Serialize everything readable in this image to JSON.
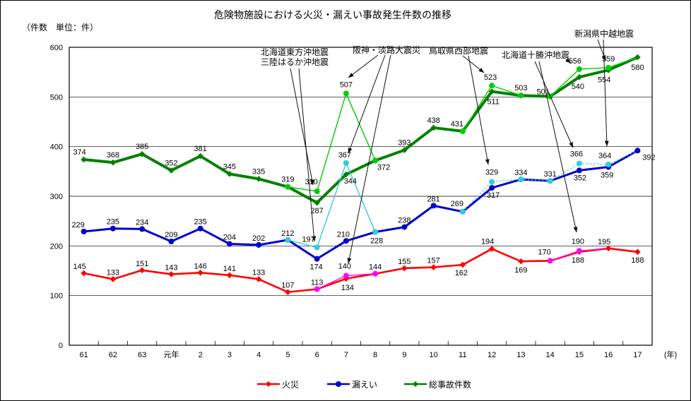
{
  "chart_data": {
    "type": "line",
    "title": "危険物施設における火災・漏えい事故発生件数の推移",
    "ylabel": "（件数　単位：件）",
    "xlabel": "(年)",
    "ylim": [
      0,
      600
    ],
    "yticks": [
      0,
      100,
      200,
      300,
      400,
      500,
      600
    ],
    "grid": true,
    "legend_position": "bottom",
    "categories": [
      "61",
      "62",
      "63",
      "元年",
      "2",
      "3",
      "4",
      "5",
      "6",
      "7",
      "8",
      "9",
      "10",
      "11",
      "12",
      "13",
      "14",
      "15",
      "16",
      "17"
    ],
    "series": [
      {
        "name": "火災",
        "color": "#ff0000",
        "marker": "diamond",
        "width": 2.6,
        "values": [
          145,
          133,
          151,
          143,
          146,
          141,
          133,
          107,
          113,
          134,
          144,
          155,
          157,
          162,
          194,
          169,
          170,
          188,
          195,
          188
        ]
      },
      {
        "name": "漏えい",
        "color": "#0000cc",
        "marker": "circle",
        "width": 3,
        "values": [
          229,
          235,
          234,
          209,
          235,
          204,
          202,
          212,
          174,
          210,
          228,
          238,
          281,
          269,
          317,
          334,
          331,
          352,
          359,
          392
        ]
      },
      {
        "name": "総事故件数",
        "color": "#008000",
        "marker": "diamond",
        "width": 4,
        "values": [
          374,
          368,
          385,
          352,
          381,
          345,
          335,
          319,
          287,
          344,
          372,
          393,
          438,
          431,
          511,
          503,
          501,
          540,
          554,
          580
        ]
      }
    ],
    "overlays": [
      {
        "id": "total-incl-earthquake",
        "color": "#00cc00",
        "segments": [
          {
            "x": [
              7,
              8,
              9,
              10
            ],
            "y": [
              319,
              310,
              507,
              372
            ]
          },
          {
            "x": [
              13,
              14,
              15
            ],
            "y": [
              431,
              523,
              503
            ]
          },
          {
            "x": [
              16,
              17,
              18,
              19
            ],
            "y": [
              501,
              556,
              559,
              580
            ],
            "open_end": true
          }
        ],
        "labeled_points": [
          [
            0,
            1
          ],
          [
            0,
            2
          ],
          [
            1,
            1
          ],
          [
            2,
            1
          ],
          [
            2,
            2
          ]
        ]
      },
      {
        "id": "leak-incl-earthquake",
        "color": "#33ccd5",
        "segments": [
          {
            "x": [
              7,
              8,
              9,
              10
            ],
            "y": [
              212,
              197,
              367,
              228
            ]
          },
          {
            "x": [
              13,
              14,
              15,
              16,
              17,
              18,
              19
            ],
            "y": [
              269,
              329,
              334,
              331,
              366,
              364,
              392
            ],
            "dashed": true,
            "open_end": true
          }
        ],
        "labeled_points": [
          [
            0,
            1
          ],
          [
            0,
            2
          ],
          [
            1,
            1
          ],
          [
            1,
            4
          ],
          [
            1,
            5
          ]
        ]
      },
      {
        "id": "fire-incl-earthquake",
        "color": "#ff00ff",
        "segments": [
          {
            "x": [
              8,
              9,
              10
            ],
            "y": [
              113,
              140,
              144
            ]
          },
          {
            "x": [
              16,
              17,
              18
            ],
            "y": [
              170,
              190,
              195
            ],
            "open_end": true
          }
        ],
        "labeled_points": [
          [
            0,
            1
          ],
          [
            1,
            1
          ]
        ]
      }
    ],
    "annotations": [
      {
        "lines": [
          "北海道東方沖地震",
          "三陸はるか沖地震"
        ]
      },
      {
        "lines": [
          "阪神・淡路大震災"
        ]
      },
      {
        "lines": [
          "鳥取県西部地震"
        ]
      },
      {
        "lines": [
          "北海道十勝沖地震"
        ]
      },
      {
        "lines": [
          "新潟県中越地震"
        ]
      }
    ]
  },
  "legend": [
    {
      "label": "火災",
      "color": "#ff0000",
      "marker": "diamond"
    },
    {
      "label": "漏えい",
      "color": "#0000cc",
      "marker": "circle"
    },
    {
      "label": "総事故件数",
      "color": "#008000",
      "marker": "diamond"
    }
  ]
}
